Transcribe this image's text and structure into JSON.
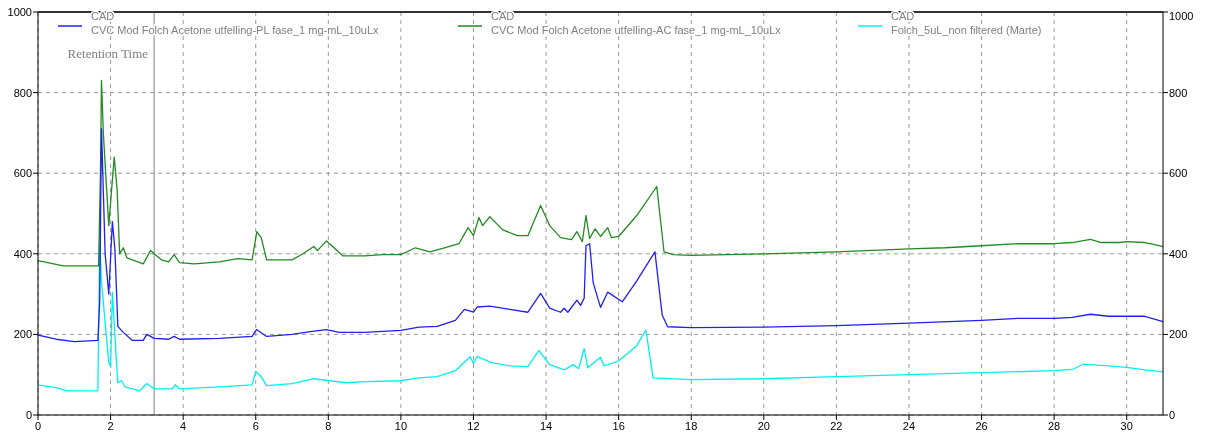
{
  "chart_data": {
    "type": "line",
    "xlim": [
      0,
      31
    ],
    "xticks": [
      0,
      2,
      4,
      6,
      8,
      10,
      12,
      14,
      16,
      18,
      20,
      22,
      24,
      26,
      28,
      30
    ],
    "ylim": [
      0,
      1000
    ],
    "yticks": [
      0,
      200,
      400,
      600,
      800,
      1000
    ],
    "y2lim": [
      0,
      1000
    ],
    "y2ticks": [
      0,
      200,
      400,
      600,
      800,
      1000
    ],
    "grid": true,
    "legend": "top",
    "line_style": "solid",
    "ref_lines": [
      {
        "axis": "x",
        "value": 3.2,
        "label": "Retention Time",
        "color": "#808080"
      }
    ],
    "series": [
      {
        "name": "CAD\nCVC Mod Folch Acetone utfelling-PL fase_1 mg-mL_10uLx",
        "color": "#2020f0",
        "x": [
          0,
          0.5,
          1.0,
          1.65,
          1.7,
          1.75,
          1.85,
          1.95,
          2.05,
          2.12,
          2.2,
          2.35,
          2.6,
          2.9,
          3.0,
          3.2,
          3.6,
          3.75,
          3.9,
          5,
          5.9,
          6.02,
          6.3,
          7,
          7.5,
          7.95,
          8.3,
          9,
          10,
          10.5,
          11,
          11.5,
          11.75,
          12.0,
          12.1,
          12.45,
          13,
          13.5,
          13.85,
          14.1,
          14.4,
          14.5,
          14.6,
          14.85,
          14.95,
          15.05,
          15.1,
          15.2,
          15.3,
          15.5,
          15.7,
          16.1,
          16.5,
          17.0,
          17.2,
          17.35,
          18,
          20,
          22,
          24,
          26,
          27,
          28,
          28.5,
          29.0,
          29.5,
          30.5,
          31
        ],
        "values": [
          198,
          188,
          182,
          185,
          280,
          710,
          400,
          300,
          480,
          410,
          220,
          205,
          185,
          185,
          200,
          190,
          188,
          195,
          188,
          190,
          195,
          212,
          195,
          200,
          207,
          212,
          205,
          205,
          210,
          218,
          220,
          235,
          262,
          255,
          268,
          270,
          262,
          255,
          302,
          265,
          255,
          265,
          255,
          285,
          272,
          290,
          420,
          425,
          328,
          267,
          305,
          281,
          333,
          405,
          248,
          219,
          217,
          218,
          222,
          228,
          235,
          240,
          240,
          242,
          250,
          245,
          245,
          232
        ]
      },
      {
        "name": "CAD\nCVC Mod Folch Acetone utfelling-AC fase_1 mg-mL_10uLx",
        "color": "#228b22",
        "x": [
          0,
          0.7,
          1.67,
          1.72,
          1.75,
          1.8,
          1.95,
          2.1,
          2.18,
          2.25,
          2.35,
          2.45,
          2.9,
          3.1,
          3.4,
          3.6,
          3.75,
          3.9,
          4.3,
          5.0,
          5.5,
          5.9,
          6.03,
          6.15,
          6.3,
          7.0,
          7.3,
          7.6,
          7.7,
          7.95,
          8.4,
          9.0,
          9.5,
          10.0,
          10.4,
          10.8,
          11.2,
          11.6,
          11.85,
          12.0,
          12.15,
          12.25,
          12.45,
          12.8,
          13.2,
          13.5,
          13.85,
          14.1,
          14.4,
          14.7,
          14.85,
          15.0,
          15.1,
          15.2,
          15.35,
          15.5,
          15.7,
          15.8,
          16.0,
          16.5,
          17.05,
          17.25,
          17.5,
          18,
          20,
          22,
          24,
          25,
          26,
          27,
          28,
          28.5,
          29.0,
          29.3,
          29.8,
          30,
          30.5,
          30.8,
          31
        ],
        "values": [
          383,
          370,
          370,
          600,
          830,
          700,
          470,
          640,
          560,
          400,
          415,
          390,
          375,
          408,
          385,
          380,
          398,
          378,
          375,
          380,
          388,
          385,
          455,
          440,
          385,
          385,
          400,
          418,
          408,
          432,
          395,
          395,
          398,
          398,
          415,
          405,
          415,
          425,
          465,
          445,
          490,
          470,
          492,
          460,
          445,
          445,
          520,
          470,
          440,
          435,
          455,
          430,
          495,
          438,
          462,
          443,
          465,
          440,
          443,
          495,
          567,
          405,
          398,
          396,
          400,
          405,
          412,
          415,
          420,
          425,
          425,
          428,
          436,
          428,
          428,
          430,
          428,
          422,
          418
        ]
      },
      {
        "name": "CAD\nFolch_5uL_non filtered (Marte)",
        "color": "#00f0f0",
        "x": [
          0,
          0.5,
          0.8,
          1.65,
          1.7,
          1.75,
          1.95,
          2.0,
          2.05,
          2.15,
          2.2,
          2.3,
          2.4,
          2.8,
          3.0,
          3.2,
          3.7,
          3.78,
          3.9,
          5,
          5.9,
          6.0,
          6.15,
          6.3,
          7,
          7.6,
          8.5,
          9,
          10,
          10.5,
          11,
          11.5,
          11.8,
          11.9,
          12.0,
          12.1,
          12.5,
          13.0,
          13.5,
          13.8,
          14.1,
          14.5,
          14.75,
          14.9,
          15.05,
          15.15,
          15.5,
          15.6,
          16.0,
          16.5,
          16.75,
          16.95,
          18,
          20,
          22,
          24,
          26,
          28,
          28.5,
          28.8,
          29.5,
          30,
          30.5,
          31
        ],
        "values": [
          75,
          68,
          60,
          60,
          430,
          330,
          130,
          120,
          305,
          150,
          80,
          85,
          70,
          60,
          78,
          65,
          65,
          75,
          65,
          70,
          75,
          108,
          95,
          73,
          78,
          90,
          80,
          83,
          85,
          92,
          95,
          110,
          135,
          145,
          128,
          145,
          130,
          122,
          120,
          160,
          125,
          112,
          125,
          115,
          165,
          117,
          143,
          122,
          134,
          172,
          211,
          92,
          88,
          90,
          95,
          100,
          105,
          110,
          113,
          126,
          122,
          118,
          112,
          107
        ]
      }
    ]
  }
}
